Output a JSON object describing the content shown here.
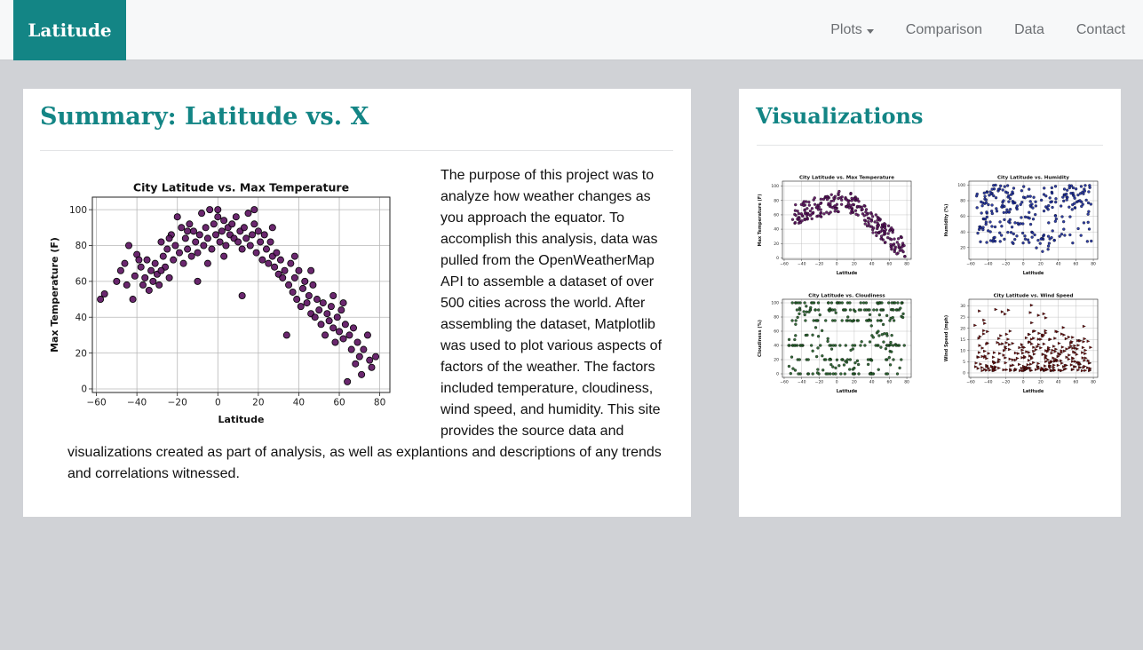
{
  "navbar": {
    "brand": "Latitude",
    "items": [
      {
        "label": "Plots",
        "dropdown": true
      },
      {
        "label": "Comparison"
      },
      {
        "label": "Data"
      },
      {
        "label": "Contact"
      }
    ]
  },
  "summary": {
    "title": "Summary: Latitude vs. X",
    "text_lines": [
      "The purpose of this project was to",
      "analyze how weather changes as",
      "you approach the equator. To",
      "accomplish this analysis, data was",
      "pulled from the OpenWeatherMap",
      "API to assemble a dataset of over",
      "500 cities across the world. After",
      "assembling the dataset, Matplotlib",
      "was used to plot various aspects of",
      "factors of the weather. The factors",
      "included temperature, cloudiness,",
      "wind speed, and humidity. This site",
      "provides the source data and"
    ],
    "text_tail_lines": [
      "visualizations created as part of analysis, as well as explantions and descriptions of any trends",
      "and correlations witnessed."
    ]
  },
  "visualizations": {
    "title": "Visualizations"
  },
  "colors": {
    "accent": "#138585",
    "temperature": "#5a0f5e",
    "humidity": "#1a2a9a",
    "cloudiness": "#1f5a25",
    "wind": "#6b1010"
  },
  "chart_data": [
    {
      "type": "scatter",
      "title": "City Latitude vs. Max Temperature",
      "xlabel": "Latitude",
      "ylabel": "Max Temperature (F)",
      "xlim": [
        -62,
        85
      ],
      "ylim": [
        -2,
        107
      ],
      "xticks": [
        -60,
        -40,
        -20,
        0,
        20,
        40,
        60,
        80
      ],
      "yticks": [
        0,
        20,
        40,
        60,
        80,
        100
      ],
      "grid": true,
      "color": "#5a0f5e",
      "points": [
        [
          -58,
          50
        ],
        [
          -56,
          53
        ],
        [
          -50,
          60
        ],
        [
          -46,
          70
        ],
        [
          -44,
          80
        ],
        [
          -42,
          50
        ],
        [
          -41,
          63
        ],
        [
          -40,
          75
        ],
        [
          -38,
          68
        ],
        [
          -37,
          58
        ],
        [
          -36,
          62
        ],
        [
          -35,
          72
        ],
        [
          -34,
          55
        ],
        [
          -33,
          66
        ],
        [
          -32,
          60
        ],
        [
          -31,
          70
        ],
        [
          -30,
          64
        ],
        [
          -29,
          58
        ],
        [
          -28,
          82
        ],
        [
          -27,
          74
        ],
        [
          -26,
          68
        ],
        [
          -25,
          78
        ],
        [
          -24,
          62
        ],
        [
          -23,
          86
        ],
        [
          -22,
          72
        ],
        [
          -21,
          80
        ],
        [
          -20,
          96
        ],
        [
          -19,
          76
        ],
        [
          -18,
          90
        ],
        [
          -17,
          70
        ],
        [
          -16,
          84
        ],
        [
          -15,
          78
        ],
        [
          -14,
          92
        ],
        [
          -13,
          74
        ],
        [
          -12,
          88
        ],
        [
          -11,
          82
        ],
        [
          -10,
          76
        ],
        [
          -9,
          86
        ],
        [
          -8,
          98
        ],
        [
          -7,
          80
        ],
        [
          -6,
          90
        ],
        [
          -5,
          84
        ],
        [
          -4,
          100
        ],
        [
          -3,
          78
        ],
        [
          -2,
          92
        ],
        [
          -1,
          86
        ],
        [
          0,
          96
        ],
        [
          1,
          82
        ],
        [
          2,
          88
        ],
        [
          3,
          94
        ],
        [
          4,
          80
        ],
        [
          5,
          90
        ],
        [
          6,
          86
        ],
        [
          7,
          92
        ],
        [
          8,
          84
        ],
        [
          9,
          96
        ],
        [
          10,
          82
        ],
        [
          11,
          88
        ],
        [
          12,
          78
        ],
        [
          13,
          90
        ],
        [
          14,
          84
        ],
        [
          15,
          98
        ],
        [
          16,
          80
        ],
        [
          17,
          86
        ],
        [
          18,
          92
        ],
        [
          19,
          76
        ],
        [
          20,
          88
        ],
        [
          21,
          82
        ],
        [
          22,
          72
        ],
        [
          23,
          86
        ],
        [
          24,
          78
        ],
        [
          25,
          70
        ],
        [
          26,
          82
        ],
        [
          27,
          74
        ],
        [
          28,
          68
        ],
        [
          29,
          76
        ],
        [
          30,
          64
        ],
        [
          31,
          72
        ],
        [
          32,
          62
        ],
        [
          33,
          66
        ],
        [
          34,
          30
        ],
        [
          35,
          58
        ],
        [
          36,
          70
        ],
        [
          37,
          54
        ],
        [
          38,
          62
        ],
        [
          39,
          50
        ],
        [
          40,
          66
        ],
        [
          41,
          46
        ],
        [
          42,
          56
        ],
        [
          43,
          60
        ],
        [
          44,
          48
        ],
        [
          45,
          52
        ],
        [
          46,
          42
        ],
        [
          47,
          58
        ],
        [
          48,
          40
        ],
        [
          49,
          50
        ],
        [
          50,
          44
        ],
        [
          51,
          36
        ],
        [
          52,
          48
        ],
        [
          53,
          30
        ],
        [
          54,
          42
        ],
        [
          55,
          38
        ],
        [
          56,
          46
        ],
        [
          57,
          34
        ],
        [
          58,
          26
        ],
        [
          59,
          40
        ],
        [
          60,
          32
        ],
        [
          61,
          44
        ],
        [
          62,
          28
        ],
        [
          63,
          36
        ],
        [
          64,
          4
        ],
        [
          65,
          30
        ],
        [
          66,
          22
        ],
        [
          67,
          34
        ],
        [
          68,
          14
        ],
        [
          69,
          26
        ],
        [
          70,
          18
        ],
        [
          71,
          8
        ],
        [
          72,
          22
        ],
        [
          74,
          30
        ],
        [
          75,
          16
        ],
        [
          76,
          12
        ],
        [
          78,
          18
        ],
        [
          -48,
          66
        ],
        [
          -45,
          58
        ],
        [
          -39,
          72
        ],
        [
          -28,
          66
        ],
        [
          -24,
          84
        ],
        [
          -15,
          88
        ],
        [
          -5,
          70
        ],
        [
          3,
          74
        ],
        [
          12,
          52
        ],
        [
          18,
          100
        ],
        [
          27,
          90
        ],
        [
          38,
          74
        ],
        [
          46,
          66
        ],
        [
          57,
          52
        ],
        [
          62,
          48
        ],
        [
          -10,
          60
        ],
        [
          0,
          100
        ]
      ]
    },
    {
      "type": "scatter",
      "title": "City Latitude vs. Max Temperature",
      "xlabel": "Latitude",
      "ylabel": "Max Temperature (F)",
      "xlim": [
        -62,
        85
      ],
      "ylim": [
        -2,
        107
      ],
      "xticks": [
        -60,
        -40,
        -20,
        0,
        20,
        40,
        60,
        80
      ],
      "yticks": [
        0,
        20,
        40,
        60,
        80,
        100
      ],
      "color": "#5a0f5e"
    },
    {
      "type": "scatter",
      "title": "City Latitude vs. Humidity",
      "xlabel": "Latitude",
      "ylabel": "Humidity (%)",
      "xlim": [
        -62,
        85
      ],
      "ylim": [
        5,
        105
      ],
      "xticks": [
        -60,
        -40,
        -20,
        0,
        20,
        40,
        60,
        80
      ],
      "yticks": [
        20,
        40,
        60,
        80,
        100
      ],
      "color": "#1a2a9a"
    },
    {
      "type": "scatter",
      "title": "City Latitude vs. Cloudiness",
      "xlabel": "Latitude",
      "ylabel": "Cloudiness (%)",
      "xlim": [
        -62,
        85
      ],
      "ylim": [
        -5,
        105
      ],
      "xticks": [
        -60,
        -40,
        -20,
        0,
        20,
        40,
        60,
        80
      ],
      "yticks": [
        0,
        20,
        40,
        60,
        80,
        100
      ],
      "color": "#1f5a25"
    },
    {
      "type": "scatter",
      "title": "City Latitude vs. Wind Speed",
      "xlabel": "Latitude",
      "ylabel": "Wind Speed (mph)",
      "xlim": [
        -62,
        85
      ],
      "ylim": [
        -2,
        33
      ],
      "xticks": [
        -60,
        -40,
        -20,
        0,
        20,
        40,
        60,
        80
      ],
      "yticks": [
        0,
        5,
        10,
        15,
        20,
        25,
        30
      ],
      "color": "#6b1010"
    }
  ]
}
